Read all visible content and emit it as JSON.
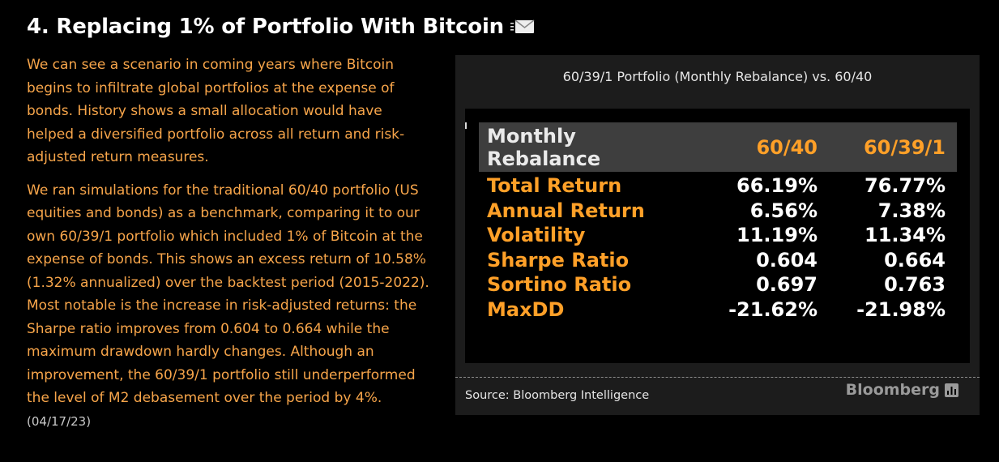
{
  "header": {
    "title": "4. Replacing 1% of Portfolio With Bitcoin",
    "mail_icon": "mail-icon"
  },
  "article": {
    "paragraph1": "We can see a scenario in coming years where Bitcoin begins to infiltrate global portfolios at the expense of bonds. History shows a small allocation would have helped a diversified portfolio across all return and risk-adjusted return measures.",
    "paragraph2": "We ran simulations for the traditional 60/40 portfolio (US equities and bonds) as a benchmark, comparing it to our own 60/39/1 portfolio which included 1% of Bitcoin at the expense of bonds. This shows an excess return of 10.58% (1.32% annualized) over the backtest period (2015-2022). Most notable is the increase in risk-adjusted returns: the Sharpe ratio improves from 0.604 to 0.664 while the maximum drawdown hardly changes. Although an improvement, the 60/39/1 portfolio still underperformed the level of M2 debasement over the period by 4%.",
    "date": "(04/17/23)"
  },
  "panel": {
    "title": "60/39/1 Portfolio (Monthly Rebalance) vs. 60/40",
    "source": "Source: Bloomberg Intelligence",
    "watermark": "Bloomberg"
  },
  "chart_data": {
    "type": "table",
    "columns": [
      "Monthly Rebalance",
      "60/40",
      "60/39/1"
    ],
    "rows": [
      {
        "label": "Total Return",
        "v1": "66.19%",
        "v2": "76.77%"
      },
      {
        "label": "Annual Return",
        "v1": "6.56%",
        "v2": "7.38%"
      },
      {
        "label": "Volatility",
        "v1": "11.19%",
        "v2": "11.34%"
      },
      {
        "label": "Sharpe Ratio",
        "v1": "0.604",
        "v2": "0.664"
      },
      {
        "label": "Sortino Ratio",
        "v1": "0.697",
        "v2": "0.763"
      },
      {
        "label": "MaxDD",
        "v1": "-21.62%",
        "v2": "-21.98%"
      }
    ]
  },
  "colors": {
    "accent": "#ffa028",
    "body_text": "#f7a54a",
    "background": "#000000",
    "panel": "#1c1c1c"
  }
}
